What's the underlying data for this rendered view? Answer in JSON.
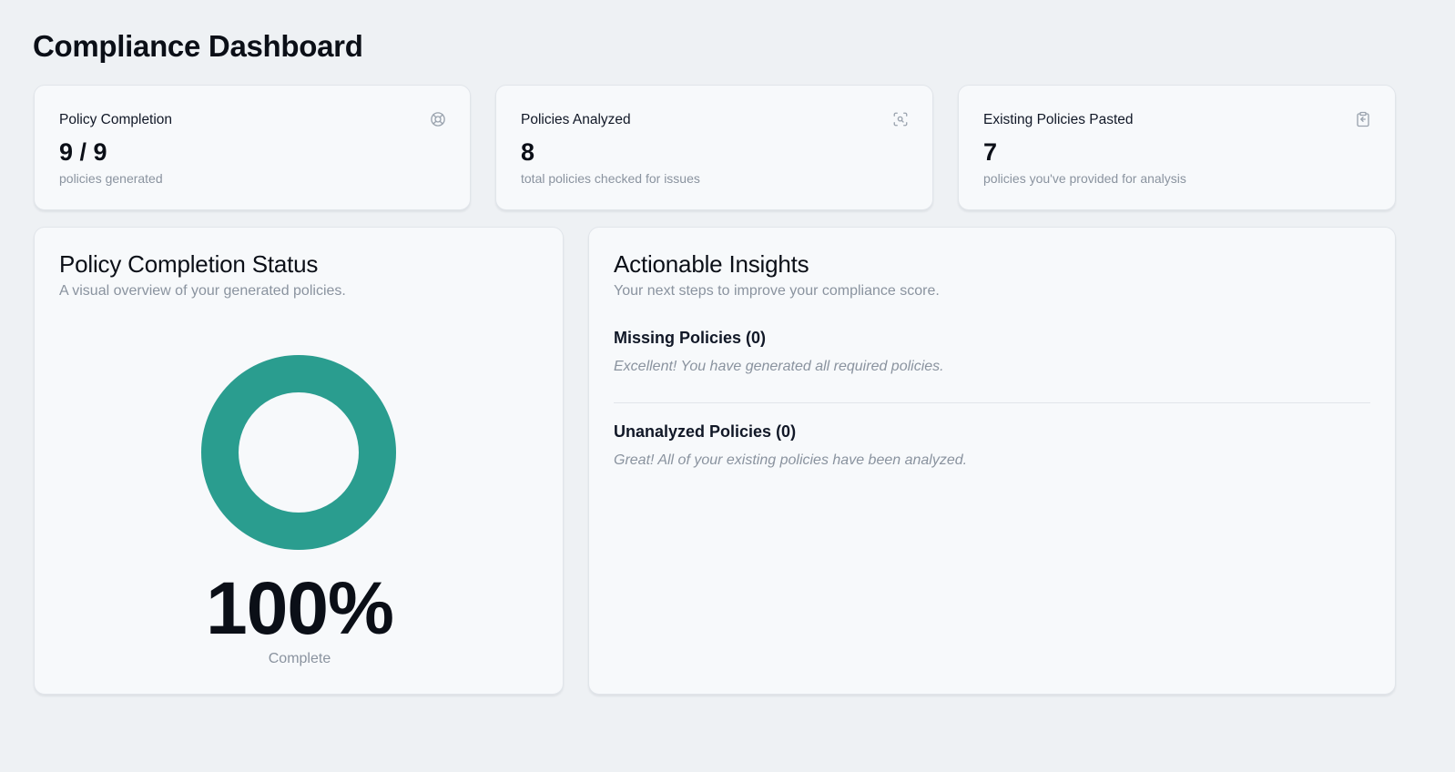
{
  "page": {
    "title": "Compliance Dashboard"
  },
  "stats": [
    {
      "label": "Policy Completion",
      "value": "9 / 9",
      "sub": "policies generated",
      "icon": "life-buoy-icon"
    },
    {
      "label": "Policies Analyzed",
      "value": "8",
      "sub": "total policies checked for issues",
      "icon": "scan-search-icon"
    },
    {
      "label": "Existing Policies Pasted",
      "value": "7",
      "sub": "policies you've provided for analysis",
      "icon": "clipboard-paste-icon"
    }
  ],
  "status": {
    "title": "Policy Completion Status",
    "subtitle": "A visual overview of your generated policies.",
    "percent": "100%",
    "percent_label": "Complete",
    "completion_fraction": 1.0,
    "ring_color": "#2a9d8f",
    "ring_track_color": "#e5e7eb"
  },
  "insights": {
    "title": "Actionable Insights",
    "subtitle": "Your next steps to improve your compliance score.",
    "sections": [
      {
        "title": "Missing Policies (0)",
        "text": "Excellent! You have generated all required policies."
      },
      {
        "title": "Unanalyzed Policies (0)",
        "text": "Great! All of your existing policies have been analyzed."
      }
    ]
  },
  "colors": {
    "background": "#eef1f4",
    "card": "#f7f9fb",
    "muted_text": "#8a939f",
    "icon": "#9aa3ae"
  }
}
